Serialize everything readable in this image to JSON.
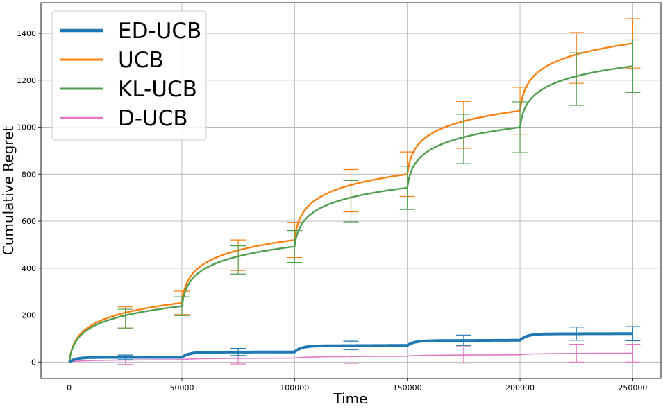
{
  "chart_data": {
    "type": "line",
    "xlabel": "Time",
    "ylabel": "Cumulative Regret",
    "xlim": [
      -12500,
      262500
    ],
    "ylim": [
      -70,
      1530
    ],
    "grid": true,
    "legend_position": "top-left",
    "x_ticks": [
      0,
      50000,
      100000,
      150000,
      200000,
      250000
    ],
    "x_tick_labels": [
      "0",
      "50000",
      "100000",
      "150000",
      "200000",
      "250000"
    ],
    "y_ticks": [
      0,
      200,
      400,
      600,
      800,
      1000,
      1200,
      1400
    ],
    "y_tick_labels": [
      "0",
      "200",
      "400",
      "600",
      "800",
      "1000",
      "1200",
      "1400"
    ],
    "series": [
      {
        "name": "ED-UCB",
        "color": "#1f77b4",
        "segments": [
          {
            "start": 0,
            "base": 0,
            "jump": 20,
            "end": 20
          },
          {
            "start": 50000,
            "base": 20,
            "jump": 22,
            "end": 43
          },
          {
            "start": 100000,
            "base": 43,
            "jump": 26,
            "end": 71
          },
          {
            "start": 150000,
            "base": 71,
            "jump": 20,
            "end": 93
          },
          {
            "start": 200000,
            "base": 93,
            "jump": 27,
            "end": 121
          }
        ],
        "errorbars": [
          {
            "x": 25000,
            "y": 20,
            "err": 10
          },
          {
            "x": 75000,
            "y": 43,
            "err": 15
          },
          {
            "x": 125000,
            "y": 71,
            "err": 18
          },
          {
            "x": 175000,
            "y": 93,
            "err": 22
          },
          {
            "x": 225000,
            "y": 121,
            "err": 28
          },
          {
            "x": 250000,
            "y": 121,
            "err": 30
          }
        ]
      },
      {
        "name": "UCB",
        "color": "#ff7f0e",
        "segments": [
          {
            "start": 0,
            "base": 0,
            "end": 252
          },
          {
            "start": 50000,
            "base": 252,
            "end": 520
          },
          {
            "start": 100000,
            "base": 520,
            "end": 800
          },
          {
            "start": 150000,
            "base": 800,
            "end": 1070
          },
          {
            "start": 200000,
            "base": 1070,
            "end": 1357
          }
        ],
        "errorbars": [
          {
            "x": 25000,
            "y": 190,
            "err": 45
          },
          {
            "x": 50000,
            "y": 252,
            "err": 50
          },
          {
            "x": 75000,
            "y": 455,
            "err": 65
          },
          {
            "x": 100000,
            "y": 520,
            "err": 75
          },
          {
            "x": 125000,
            "y": 730,
            "err": 90
          },
          {
            "x": 150000,
            "y": 800,
            "err": 95
          },
          {
            "x": 175000,
            "y": 1010,
            "err": 100
          },
          {
            "x": 200000,
            "y": 1070,
            "err": 100
          },
          {
            "x": 225000,
            "y": 1295,
            "err": 108
          },
          {
            "x": 250000,
            "y": 1357,
            "err": 105
          }
        ]
      },
      {
        "name": "KL-UCB",
        "color": "#4f9e4f",
        "segments": [
          {
            "start": 0,
            "base": 0,
            "end": 238
          },
          {
            "start": 50000,
            "base": 238,
            "end": 492
          },
          {
            "start": 100000,
            "base": 492,
            "end": 742
          },
          {
            "start": 150000,
            "base": 742,
            "end": 1000
          },
          {
            "start": 200000,
            "base": 1000,
            "end": 1260
          }
        ],
        "errorbars": [
          {
            "x": 25000,
            "y": 185,
            "err": 40
          },
          {
            "x": 50000,
            "y": 238,
            "err": 40
          },
          {
            "x": 75000,
            "y": 435,
            "err": 60
          },
          {
            "x": 100000,
            "y": 492,
            "err": 68
          },
          {
            "x": 125000,
            "y": 685,
            "err": 88
          },
          {
            "x": 150000,
            "y": 742,
            "err": 92
          },
          {
            "x": 175000,
            "y": 950,
            "err": 105
          },
          {
            "x": 200000,
            "y": 1000,
            "err": 108
          },
          {
            "x": 225000,
            "y": 1205,
            "err": 112
          },
          {
            "x": 250000,
            "y": 1260,
            "err": 112
          }
        ]
      },
      {
        "name": "D-UCB",
        "color": "#e377c2",
        "segments": [
          {
            "start": 0,
            "base": 0,
            "end": 10
          },
          {
            "start": 50000,
            "base": 10,
            "end": 17
          },
          {
            "start": 100000,
            "base": 17,
            "end": 25
          },
          {
            "start": 150000,
            "base": 25,
            "end": 31
          },
          {
            "start": 200000,
            "base": 31,
            "end": 38
          }
        ],
        "errorbars": [
          {
            "x": 25000,
            "y": 10,
            "err": 20
          },
          {
            "x": 75000,
            "y": 17,
            "err": 25
          },
          {
            "x": 125000,
            "y": 25,
            "err": 30
          },
          {
            "x": 175000,
            "y": 31,
            "err": 35
          },
          {
            "x": 225000,
            "y": 38,
            "err": 38
          },
          {
            "x": 250000,
            "y": 38,
            "err": 38
          }
        ]
      }
    ]
  }
}
